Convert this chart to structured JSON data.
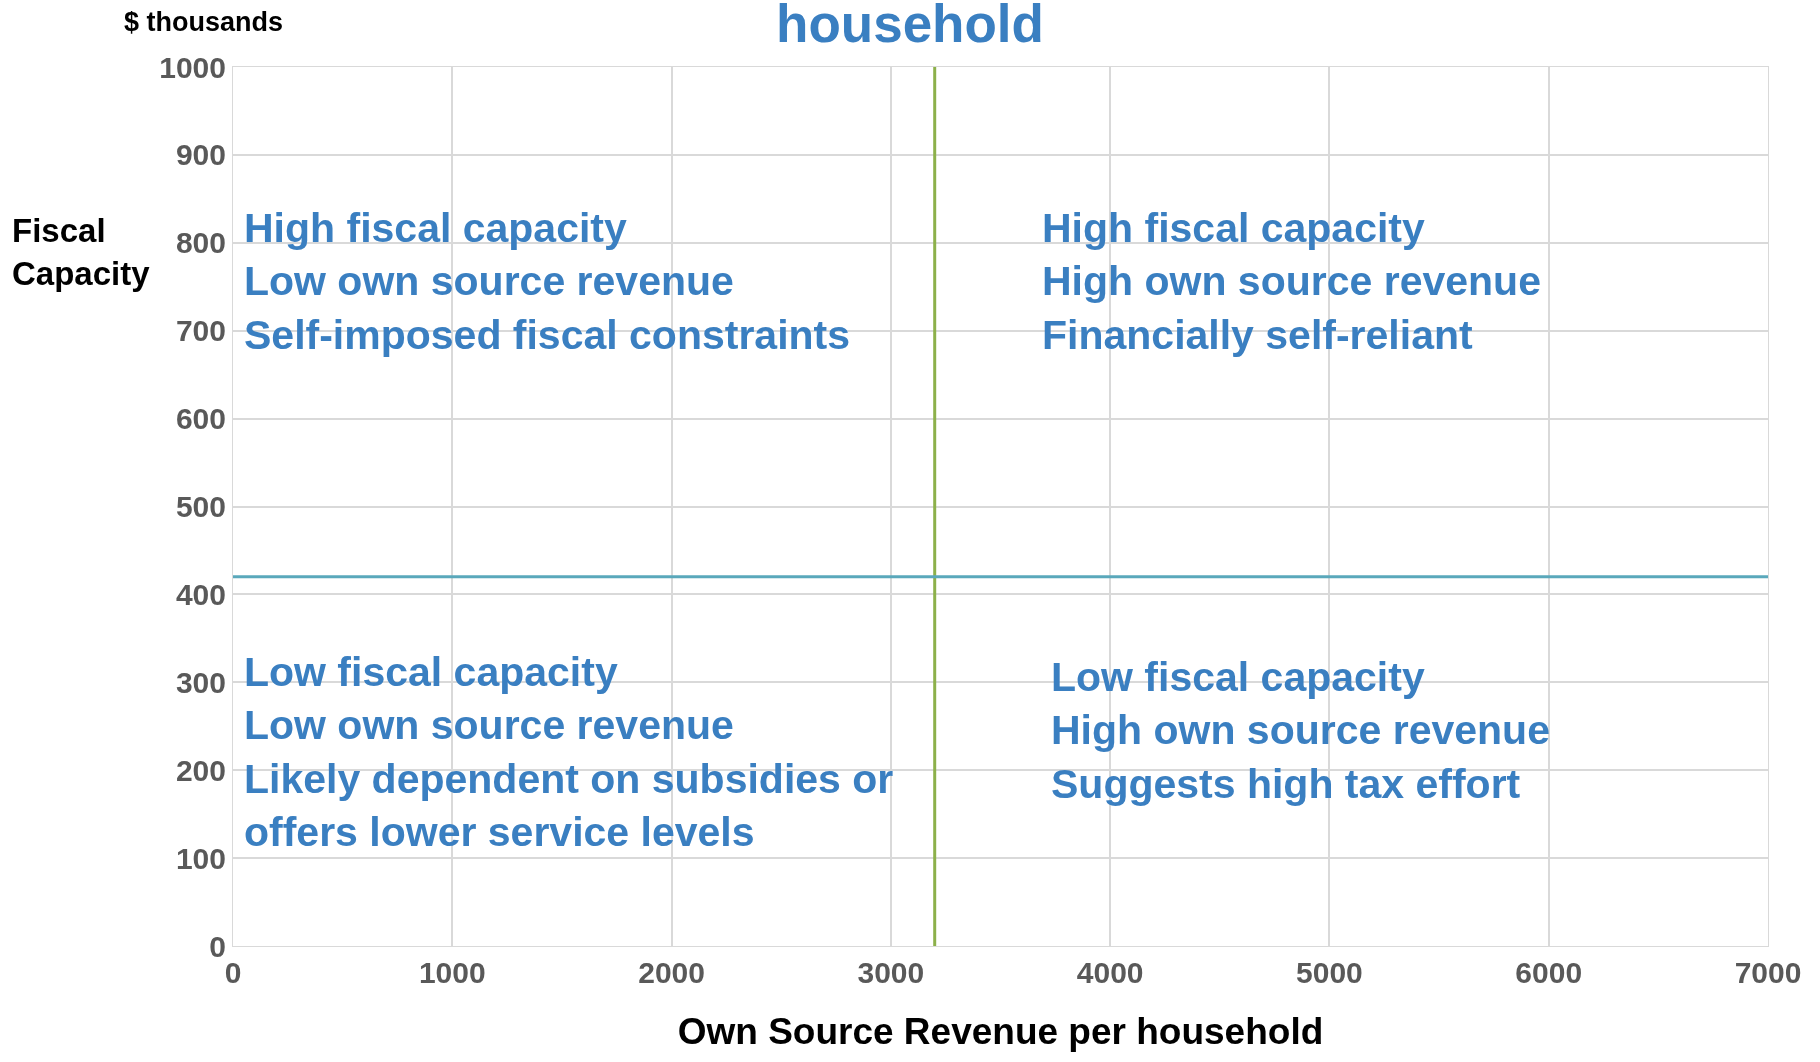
{
  "chart_data": {
    "type": "scatter",
    "title": "household",
    "xlabel": "Own Source Revenue per household",
    "ylabel": "Fiscal\nCapacity",
    "xlim": [
      0,
      7000
    ],
    "xticks": [
      0,
      1000,
      2000,
      3000,
      4000,
      5000,
      6000,
      7000
    ],
    "ylim": [
      0,
      1000
    ],
    "yticks": [
      0,
      100,
      200,
      300,
      400,
      500,
      600,
      700,
      800,
      900,
      1000
    ],
    "grid": true,
    "ref_lines": [
      {
        "axis": "x",
        "value": 3200,
        "color": "#8cb04a"
      },
      {
        "axis": "y",
        "value": 420,
        "color": "#5aa8bb"
      }
    ],
    "annotations": [
      "$ thousands",
      "High fiscal capacity\nLow own source revenue\nSelf-imposed fiscal constraints",
      "High fiscal capacity\nHigh own source revenue\nFinancially self-reliant",
      "Low fiscal capacity\nLow own source revenue\nLikely dependent on subsidies or\noffers lower service levels",
      "Low fiscal capacity\nHigh own source revenue\nSuggests high tax effort"
    ]
  }
}
